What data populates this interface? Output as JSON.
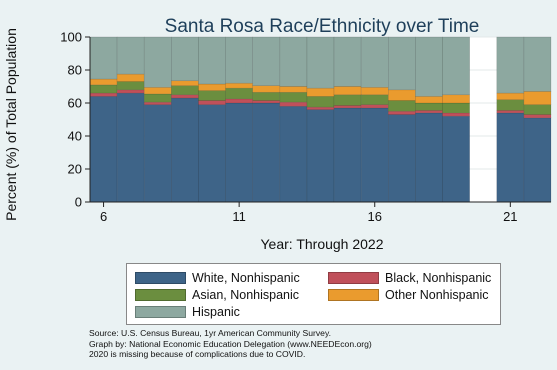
{
  "chart_data": {
    "type": "bar",
    "stacked": true,
    "title": "Santa Rosa Race/Ethnicity over Time",
    "xlabel": "Year: Through 2022",
    "ylabel": "Percent (%) of Total Population",
    "ylim": [
      0,
      100
    ],
    "yticks": [
      "0",
      "20",
      "40",
      "60",
      "80",
      "100"
    ],
    "x_ticks": [
      {
        "x": 6,
        "label": "6"
      },
      {
        "x": 11,
        "label": "11"
      },
      {
        "x": 16,
        "label": "16"
      },
      {
        "x": 21,
        "label": "21"
      }
    ],
    "xlim": [
      5.5,
      22.5
    ],
    "x": [
      6,
      7,
      8,
      9,
      10,
      11,
      12,
      13,
      14,
      15,
      16,
      17,
      18,
      19,
      21,
      22
    ],
    "grid": true,
    "legend_position": "bottom",
    "series": [
      {
        "name": "White, Nonhispanic",
        "color": "#3e6488",
        "values": [
          64,
          66,
          59,
          63,
          59,
          60,
          60,
          58,
          56,
          57,
          57,
          53,
          54,
          52,
          54,
          51
        ]
      },
      {
        "name": "Black, Nonhispanic",
        "color": "#c0505a",
        "values": [
          2,
          2,
          1.5,
          2,
          2.5,
          2.5,
          1.5,
          2.5,
          1.5,
          1.5,
          2,
          2,
          1.5,
          2,
          1.5,
          2
        ]
      },
      {
        "name": "Asian, Nonhispanic",
        "color": "#6b8e3f",
        "values": [
          5,
          5,
          5,
          5.5,
          6,
          6.5,
          5,
          6,
          6.5,
          6.5,
          6,
          6.5,
          4.5,
          6,
          6.5,
          6
        ]
      },
      {
        "name": "Other Nonhispanic",
        "color": "#ea9b2e",
        "values": [
          3.5,
          4.5,
          4,
          3,
          4,
          3,
          4,
          3.5,
          5,
          5,
          4.5,
          6.5,
          4,
          5,
          4,
          8
        ]
      },
      {
        "name": "Hispanic",
        "color": "#8da8a0",
        "values": [
          25.5,
          22.5,
          30.5,
          26.5,
          28.5,
          28,
          29.5,
          30,
          31,
          30,
          30.5,
          32,
          36,
          35,
          34,
          33
        ]
      }
    ]
  },
  "legend": {
    "items": [
      {
        "label": "White, Nonhispanic",
        "color": "#3e6488"
      },
      {
        "label": "Black, Nonhispanic",
        "color": "#c0505a"
      },
      {
        "label": "Asian, Nonhispanic",
        "color": "#6b8e3f"
      },
      {
        "label": "Other Nonhispanic",
        "color": "#ea9b2e"
      },
      {
        "label": "Hispanic",
        "color": "#8da8a0"
      }
    ]
  },
  "notes": [
    "Source:  U.S. Census Bureau, 1yr American Community Survey.",
    "Graph by: National Economic Education Delegation (www.NEEDEcon.org)",
    "2020 is missing because of complications due to COVID."
  ]
}
